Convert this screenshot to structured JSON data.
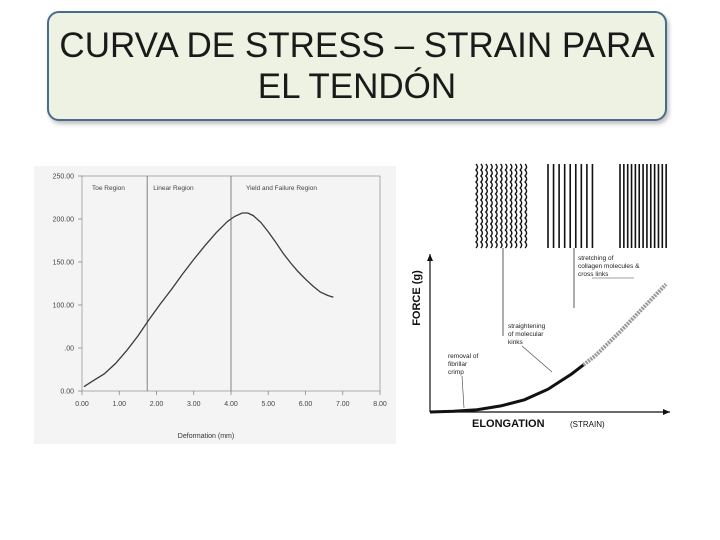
{
  "slide": {
    "title_line1": "CURVA DE STRESS – STRAIN PARA",
    "title_line2": "EL TENDÓN"
  },
  "chart_data": [
    {
      "type": "line",
      "title": "",
      "xlabel": "Deformation (mm)",
      "ylabel": "",
      "x_ticks": [
        "0.00",
        "1.00",
        "2.00",
        "3.00",
        "4.00",
        "5.00",
        "6.00",
        "7.00",
        "8.00"
      ],
      "y_ticks": [
        "0.00",
        ".00",
        "100.00",
        "150.00",
        "200.00",
        "250.00"
      ],
      "xlim": [
        0,
        8
      ],
      "ylim": [
        0,
        250
      ],
      "region_labels": [
        "Toe Region",
        "Linear Region",
        "Yield and Failure Region"
      ],
      "region_boundaries": [
        1.75,
        4.0
      ],
      "grid": false,
      "series": [
        {
          "x": [
            0.05,
            0.3,
            0.6,
            0.9,
            1.2,
            1.5,
            1.8,
            2.1,
            2.4,
            2.7,
            3.0,
            3.3,
            3.6,
            3.9,
            4.1,
            4.3,
            4.45,
            4.6,
            4.8,
            5.0,
            5.2,
            5.4,
            5.6,
            5.8,
            6.0,
            6.2,
            6.4,
            6.6,
            6.75
          ],
          "y": [
            5,
            12,
            20,
            32,
            47,
            64,
            83,
            101,
            118,
            136,
            153,
            169,
            184,
            197,
            203,
            207,
            207,
            204,
            196,
            185,
            173,
            160,
            149,
            139,
            130,
            122,
            115,
            111,
            109
          ]
        }
      ]
    },
    {
      "type": "line",
      "title": "",
      "xlabel": "ELONGATION",
      "xlabel_note": "(STRAIN)",
      "ylabel": "FORCE (g)",
      "annotations": [
        "removal of fibrillar crimp",
        "straightening of molecular kinks",
        "stretching of collagen molecules & cross links"
      ],
      "series": [
        {
          "x": [
            0,
            0.1,
            0.2,
            0.3,
            0.4,
            0.5,
            0.6,
            0.65,
            0.7,
            0.8,
            0.9,
            1.0
          ],
          "y": [
            0,
            0.005,
            0.015,
            0.04,
            0.08,
            0.15,
            0.25,
            0.31,
            0.37,
            0.52,
            0.68,
            0.84
          ]
        }
      ]
    }
  ]
}
